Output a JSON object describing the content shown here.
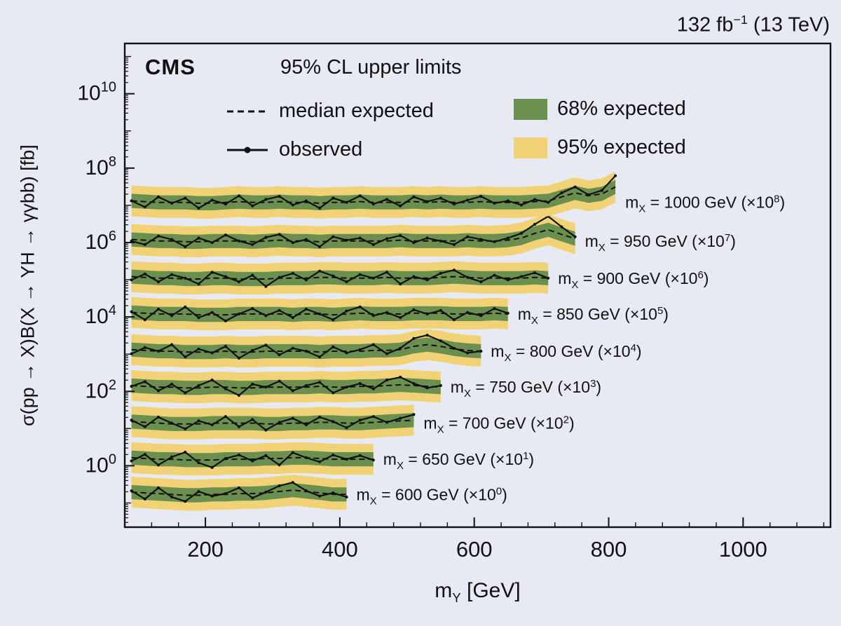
{
  "header": {
    "lumi_pre": "132 fb",
    "lumi_sup": "−1",
    "lumi_post": " (13 TeV)"
  },
  "plot": {
    "experiment": "CMS",
    "subtitle": "95% CL upper limits",
    "legend": {
      "median": "median expected",
      "observed": "observed",
      "band68": "68% expected",
      "band95": "95% expected"
    },
    "series_label": {
      "pre": "m",
      "sub": "X",
      "eq": " = ",
      "unit": " GeV (×10",
      "close": ")"
    },
    "colors": {
      "band68": "#6b8f4f",
      "band95": "#f1d276",
      "line": "#111111",
      "background": "#e8eaf3"
    }
  },
  "axes": {
    "x": {
      "label_pre": "m",
      "label_sub": "Y",
      "label_post": " [GeV]",
      "ticks": [
        200,
        400,
        600,
        800,
        1000
      ],
      "range": [
        80,
        1130
      ]
    },
    "y": {
      "label": "σ(pp → X)B(X → YH → γγbb) [fb]",
      "tick_exponents": [
        0,
        2,
        4,
        6,
        8,
        10
      ],
      "range_exponents": [
        -1.65,
        11.35
      ]
    }
  },
  "chart_data": {
    "type": "line",
    "title": "95% CL upper limits",
    "xlabel": "m_Y [GeV]",
    "ylabel": "σ(pp → X)B(X → YH → γγbb) [fb]",
    "x_unit": "GeV",
    "y_log": true,
    "xlim": [
      80,
      1130
    ],
    "ylim_exponents": [
      -1.65,
      11.35
    ],
    "legend_position": "top-inside",
    "grid": false,
    "band68_factor": 1.55,
    "band95_factor": 2.6,
    "series": [
      {
        "mass": 600,
        "scale_exp": 0,
        "limit_fb": 0.17,
        "x_start": 90,
        "x_step": 20,
        "observed_rel": [
          1.25,
          0.75,
          1.5,
          0.85,
          0.65,
          1.2,
          0.9,
          1.05,
          1.5,
          0.8,
          1.15,
          1.7,
          2.1,
          1.25,
          0.9,
          1.1,
          0.85
        ],
        "median_rel": [
          1.15,
          1.1,
          1.05,
          1.0,
          0.95,
          0.95,
          1.0,
          1.0,
          1.05,
          1.05,
          1.1,
          1.2,
          1.3,
          1.2,
          1.1,
          1.0,
          1.0
        ]
      },
      {
        "mass": 650,
        "scale_exp": 1,
        "limit_fb": 0.15,
        "x_start": 90,
        "x_step": 20,
        "observed_rel": [
          0.9,
          1.35,
          0.7,
          1.15,
          1.55,
          0.8,
          0.6,
          1.05,
          1.3,
          0.9,
          1.25,
          0.7,
          1.5,
          1.1,
          0.85,
          1.3,
          1.0,
          1.25,
          0.95
        ],
        "median_rel": [
          1.1,
          1.05,
          1.0,
          1.0,
          0.95,
          0.95,
          0.95,
          1.0,
          1.0,
          1.0,
          1.05,
          1.05,
          1.1,
          1.1,
          1.05,
          1.0,
          1.0,
          1.0,
          1.0
        ]
      },
      {
        "mass": 700,
        "scale_exp": 2,
        "limit_fb": 0.14,
        "x_start": 90,
        "x_step": 20,
        "observed_rel": [
          1.2,
          0.8,
          1.45,
          1.0,
          0.7,
          1.15,
          0.9,
          1.5,
          0.8,
          1.25,
          0.65,
          1.05,
          1.35,
          0.9,
          1.45,
          1.1,
          0.75,
          1.2,
          1.5,
          1.05,
          1.35,
          1.7
        ],
        "median_rel": [
          1.1,
          1.05,
          1.0,
          0.95,
          0.95,
          0.95,
          1.0,
          1.0,
          1.0,
          1.0,
          0.95,
          0.95,
          1.0,
          1.0,
          1.05,
          1.05,
          1.0,
          1.0,
          1.05,
          1.1,
          1.15,
          1.2
        ]
      },
      {
        "mass": 750,
        "scale_exp": 3,
        "limit_fb": 0.13,
        "x_start": 90,
        "x_step": 20,
        "observed_rel": [
          1.05,
          1.4,
          0.8,
          1.2,
          0.7,
          1.1,
          1.55,
          0.9,
          0.6,
          1.2,
          1.0,
          1.45,
          0.8,
          1.1,
          1.35,
          0.7,
          1.0,
          1.25,
          0.9,
          1.55,
          1.85,
          1.25,
          0.95,
          1.1
        ],
        "median_rel": [
          1.1,
          1.05,
          1.0,
          1.0,
          0.95,
          0.95,
          1.0,
          1.0,
          0.95,
          0.95,
          1.0,
          1.0,
          1.0,
          1.0,
          1.05,
          1.0,
          1.0,
          1.05,
          1.05,
          1.1,
          1.15,
          1.1,
          1.05,
          1.0
        ]
      },
      {
        "mass": 800,
        "scale_exp": 4,
        "limit_fb": 0.12,
        "x_start": 90,
        "x_step": 20,
        "observed_rel": [
          0.85,
          1.25,
          1.0,
          1.5,
          0.7,
          1.15,
          0.9,
          1.35,
          0.65,
          1.05,
          1.45,
          0.8,
          1.2,
          1.0,
          0.7,
          1.3,
          0.9,
          1.1,
          1.5,
          0.85,
          1.2,
          2.2,
          2.7,
          1.9,
          1.2,
          0.9,
          1.0
        ],
        "median_rel": [
          1.1,
          1.05,
          1.0,
          1.0,
          0.95,
          0.95,
          0.95,
          1.0,
          0.95,
          0.95,
          1.0,
          1.0,
          1.0,
          1.0,
          0.95,
          1.0,
          1.0,
          1.0,
          1.05,
          1.05,
          1.1,
          1.35,
          1.5,
          1.35,
          1.15,
          1.05,
          1.0
        ]
      },
      {
        "mass": 850,
        "scale_exp": 5,
        "limit_fb": 0.12,
        "x_start": 90,
        "x_step": 20,
        "observed_rel": [
          1.15,
          0.7,
          1.35,
          0.9,
          1.55,
          0.8,
          1.1,
          0.65,
          1.0,
          1.4,
          0.9,
          1.25,
          0.8,
          1.35,
          1.0,
          0.7,
          1.2,
          1.55,
          0.9,
          1.1,
          0.8,
          1.3,
          1.0,
          1.25,
          0.7,
          1.1,
          0.9,
          1.4,
          1.05
        ],
        "median_rel": [
          1.1,
          1.05,
          1.0,
          1.0,
          1.0,
          0.95,
          0.95,
          0.95,
          1.0,
          1.0,
          1.0,
          1.0,
          0.95,
          1.0,
          1.0,
          0.95,
          1.0,
          1.05,
          1.0,
          1.0,
          1.0,
          1.05,
          1.05,
          1.05,
          1.0,
          1.0,
          1.0,
          1.05,
          1.0
        ]
      },
      {
        "mass": 900,
        "scale_exp": 6,
        "limit_fb": 0.11,
        "x_start": 90,
        "x_step": 20,
        "observed_rel": [
          0.9,
          1.3,
          0.8,
          1.25,
          1.0,
          0.7,
          1.45,
          1.1,
          0.8,
          1.2,
          0.6,
          1.05,
          1.35,
          0.9,
          1.55,
          1.15,
          0.8,
          1.25,
          1.0,
          1.45,
          0.7,
          1.1,
          0.9,
          1.35,
          1.65,
          1.05,
          0.8,
          1.2,
          0.9,
          1.1,
          1.4,
          1.0
        ],
        "median_rel": [
          1.1,
          1.05,
          1.0,
          1.0,
          0.95,
          0.95,
          1.0,
          1.0,
          0.95,
          0.95,
          0.95,
          1.0,
          1.0,
          1.0,
          1.05,
          1.05,
          1.0,
          1.0,
          1.0,
          1.05,
          1.0,
          1.0,
          1.0,
          1.05,
          1.1,
          1.05,
          1.0,
          1.0,
          1.0,
          1.0,
          1.05,
          1.0
        ]
      },
      {
        "mass": 950,
        "scale_exp": 7,
        "limit_fb": 0.11,
        "x_start": 90,
        "x_step": 20,
        "observed_rel": [
          1.0,
          0.8,
          1.35,
          1.1,
          0.7,
          1.2,
          0.9,
          1.45,
          1.0,
          0.8,
          1.25,
          1.5,
          0.9,
          1.1,
          0.7,
          1.3,
          1.05,
          1.2,
          0.8,
          1.15,
          1.4,
          0.9,
          1.2,
          1.0,
          0.8,
          1.3,
          1.1,
          0.95,
          1.2,
          1.6,
          2.8,
          4.6,
          2.4,
          1.3
        ],
        "median_rel": [
          1.1,
          1.05,
          1.0,
          1.0,
          0.95,
          0.95,
          1.0,
          1.0,
          1.0,
          0.95,
          1.0,
          1.05,
          1.0,
          1.0,
          0.95,
          1.0,
          1.0,
          1.0,
          1.0,
          1.0,
          1.05,
          1.0,
          1.0,
          1.0,
          1.0,
          1.05,
          1.0,
          1.0,
          1.05,
          1.2,
          1.6,
          2.0,
          1.5,
          1.15
        ]
      },
      {
        "mass": 1000,
        "scale_exp": 8,
        "limit_fb": 0.12,
        "x_start": 90,
        "x_step": 20,
        "observed_rel": [
          1.1,
          0.75,
          1.4,
          0.95,
          1.3,
          0.7,
          1.15,
          0.9,
          1.5,
          0.8,
          1.2,
          1.45,
          0.85,
          1.1,
          0.7,
          1.3,
          1.0,
          1.5,
          0.9,
          1.2,
          0.8,
          1.4,
          1.05,
          1.3,
          0.9,
          1.15,
          1.45,
          0.95,
          1.1,
          0.85,
          1.2,
          1.0,
          1.8,
          2.6,
          1.6,
          2.1,
          5.2
        ],
        "median_rel": [
          1.1,
          1.05,
          1.0,
          1.0,
          1.0,
          0.95,
          0.95,
          1.0,
          1.05,
          1.0,
          1.0,
          1.05,
          1.0,
          1.0,
          0.95,
          1.0,
          1.0,
          1.05,
          1.0,
          1.0,
          1.0,
          1.05,
          1.0,
          1.05,
          1.0,
          1.0,
          1.05,
          1.0,
          1.0,
          1.0,
          1.05,
          1.1,
          1.4,
          1.8,
          1.5,
          1.7,
          2.6
        ]
      }
    ]
  }
}
